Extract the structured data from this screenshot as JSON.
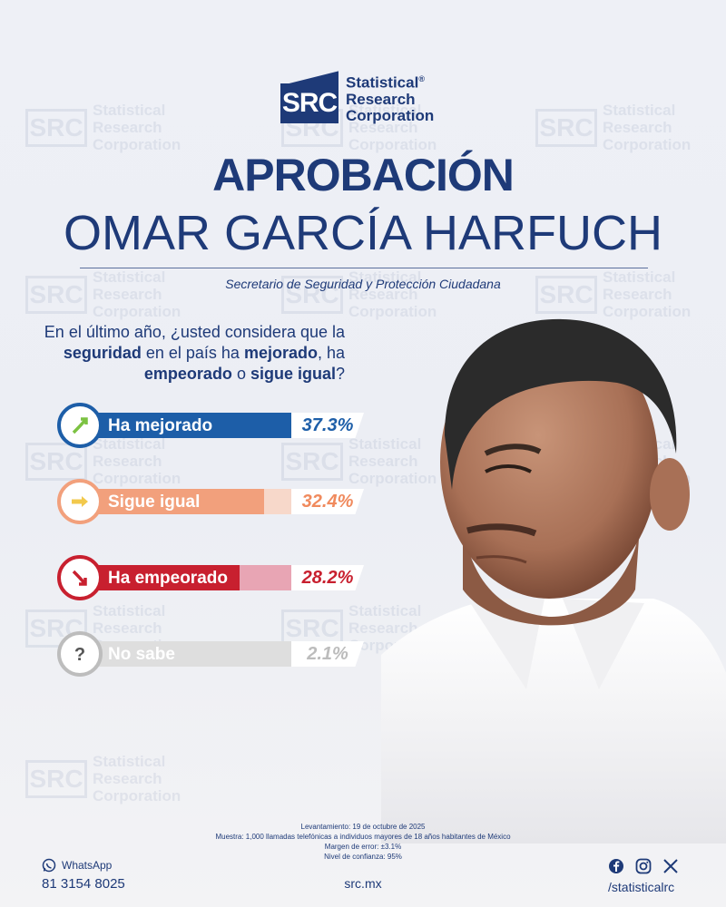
{
  "brand": {
    "logo_mark": "SRC",
    "logo_name_lines": [
      "Statistical",
      "Research",
      "Corporation"
    ],
    "registered": "®",
    "color_primary": "#1e3a78"
  },
  "header": {
    "title_line1": "APROBACIÓN",
    "title_line2": "OMAR GARCÍA HARFUCH",
    "subtitle": "Secretario de Seguridad y Protección Ciudadana"
  },
  "question": {
    "parts": [
      {
        "text": "En el último año, ¿usted considera que la ",
        "bold": false
      },
      {
        "text": "seguridad",
        "bold": true
      },
      {
        "text": " en el país ha ",
        "bold": false
      },
      {
        "text": "mejorado",
        "bold": true
      },
      {
        "text": ", ha ",
        "bold": false
      },
      {
        "text": "empeorado",
        "bold": true
      },
      {
        "text": " o ",
        "bold": false
      },
      {
        "text": "sigue igual",
        "bold": true
      },
      {
        "text": "?",
        "bold": false
      }
    ]
  },
  "chart_data": {
    "type": "bar",
    "title": "",
    "categories": [
      "Ha mejorado",
      "Sigue igual",
      "Ha empeorado",
      "No sabe"
    ],
    "values": [
      37.3,
      32.4,
      28.2,
      2.1
    ],
    "value_labels": [
      "37.3%",
      "32.4%",
      "28.2%",
      "2.1%"
    ],
    "unit": "%",
    "colors": [
      "#1d5ea8",
      "#f2a07c",
      "#c8202f",
      "#c7c7c7"
    ],
    "light_colors": [
      "#a9c6e6",
      "#f7d8ca",
      "#e8a5b4",
      "#dedede"
    ],
    "text_colors": [
      "#1d5ea8",
      "#f08a5d",
      "#c8202f",
      "#bcbcbc"
    ],
    "icons": [
      "arrow-up-right-icon",
      "arrow-right-icon",
      "arrow-down-right-icon",
      "question-mark-icon"
    ],
    "xlabel": "",
    "ylabel": ""
  },
  "methodology": {
    "lines": [
      "Levantamiento: 19 de octubre de 2025",
      "Muestra: 1,000 llamadas telefónicas a individuos mayores de 18 años habitantes de México",
      "Margen de error: ±3.1%",
      "Nivel de confianza: 95%"
    ]
  },
  "footer": {
    "whatsapp_label": "WhatsApp",
    "phone": "81 3154 8025",
    "website": "src.mx",
    "social_handle": "/statisticalrc",
    "social_icons": [
      "facebook-icon",
      "instagram-icon",
      "x-icon"
    ]
  },
  "watermark": {
    "mark": "SRC",
    "lines": [
      "Statistical",
      "Research",
      "Corporation"
    ]
  }
}
